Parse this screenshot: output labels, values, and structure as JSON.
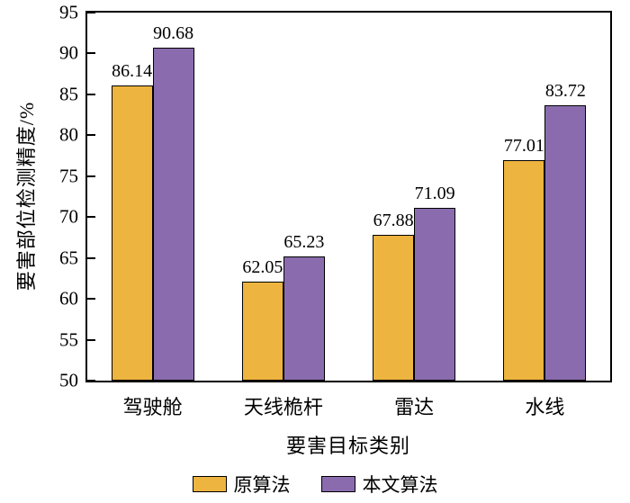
{
  "chart_data": {
    "type": "bar",
    "categories": [
      "驾驶舱",
      "天线桅杆",
      "雷达",
      "水线"
    ],
    "series": [
      {
        "name": "原算法",
        "color": "#EDB43F",
        "values": [
          86.14,
          62.05,
          67.88,
          77.01
        ]
      },
      {
        "name": "本文算法",
        "color": "#8A6CAE",
        "values": [
          90.68,
          65.23,
          71.09,
          83.72
        ]
      }
    ],
    "title": "",
    "xlabel": "要害目标类别",
    "ylabel": "要害部位检测精度/%",
    "ylim": [
      50,
      95
    ],
    "ytick_step": 5,
    "grid": false,
    "legend_position": "bottom",
    "bar_outline_color": "#000000"
  }
}
